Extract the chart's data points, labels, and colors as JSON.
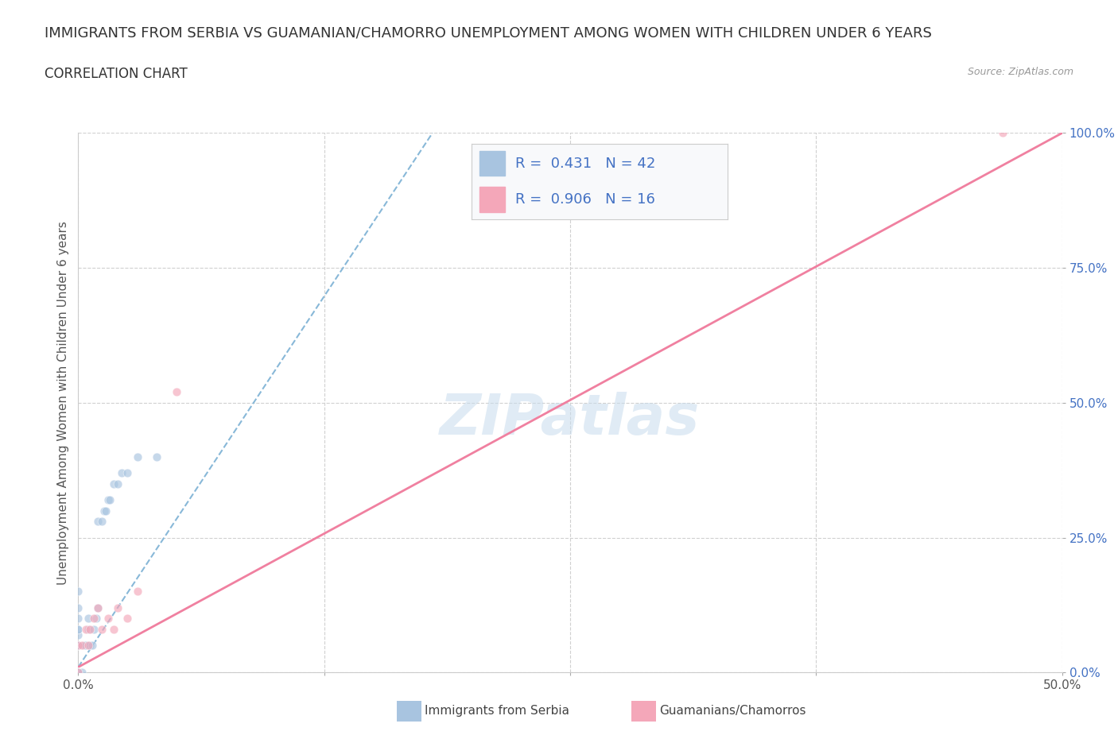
{
  "title": "IMMIGRANTS FROM SERBIA VS GUAMANIAN/CHAMORRO UNEMPLOYMENT AMONG WOMEN WITH CHILDREN UNDER 6 YEARS",
  "subtitle": "CORRELATION CHART",
  "source": "Source: ZipAtlas.com",
  "ylabel": "Unemployment Among Women with Children Under 6 years",
  "xlim": [
    0,
    0.5
  ],
  "ylim": [
    0,
    1.0
  ],
  "xticks": [
    0.0,
    0.125,
    0.25,
    0.375,
    0.5
  ],
  "yticks": [
    0.0,
    0.25,
    0.5,
    0.75,
    1.0
  ],
  "xtick_labels": [
    "0.0%",
    "",
    "",
    "",
    "50.0%"
  ],
  "ytick_labels": [
    "0.0%",
    "25.0%",
    "50.0%",
    "75.0%",
    "100.0%"
  ],
  "serbia_color": "#a8c4e0",
  "guam_color": "#f4a7b9",
  "serbia_trendline_color": "#88b8d8",
  "guam_trendline_color": "#f080a0",
  "legend_R_color": "#4472c4",
  "R_serbia": 0.431,
  "N_serbia": 42,
  "R_guam": 0.906,
  "N_guam": 16,
  "watermark": "ZIPatlas",
  "serbia_points_x": [
    0.0,
    0.0,
    0.0,
    0.0,
    0.0,
    0.0,
    0.0,
    0.0,
    0.0,
    0.0,
    0.0,
    0.0,
    0.0,
    0.0,
    0.0,
    0.0,
    0.0,
    0.0,
    0.0,
    0.0,
    0.002,
    0.003,
    0.004,
    0.005,
    0.005,
    0.006,
    0.007,
    0.008,
    0.009,
    0.01,
    0.01,
    0.012,
    0.013,
    0.014,
    0.015,
    0.016,
    0.018,
    0.02,
    0.022,
    0.025,
    0.03,
    0.04
  ],
  "serbia_points_y": [
    0.0,
    0.0,
    0.0,
    0.0,
    0.0,
    0.0,
    0.0,
    0.0,
    0.0,
    0.0,
    0.05,
    0.05,
    0.05,
    0.05,
    0.07,
    0.08,
    0.08,
    0.1,
    0.12,
    0.15,
    0.0,
    0.05,
    0.05,
    0.08,
    0.1,
    0.05,
    0.05,
    0.08,
    0.1,
    0.12,
    0.28,
    0.28,
    0.3,
    0.3,
    0.32,
    0.32,
    0.35,
    0.35,
    0.37,
    0.37,
    0.4,
    0.4
  ],
  "guam_points_x": [
    0.0,
    0.0,
    0.002,
    0.004,
    0.005,
    0.006,
    0.008,
    0.01,
    0.012,
    0.015,
    0.018,
    0.02,
    0.025,
    0.03,
    0.05,
    0.47
  ],
  "guam_points_y": [
    0.0,
    0.05,
    0.05,
    0.08,
    0.05,
    0.08,
    0.1,
    0.12,
    0.08,
    0.1,
    0.08,
    0.12,
    0.1,
    0.15,
    0.52,
    1.0
  ],
  "serbia_trend_x0": 0.0,
  "serbia_trend_x1": 0.18,
  "serbia_trend_y0": 0.01,
  "serbia_trend_y1": 1.0,
  "guam_trend_x0": 0.0,
  "guam_trend_x1": 0.5,
  "guam_trend_y0": 0.01,
  "guam_trend_y1": 1.0,
  "background_color": "#ffffff",
  "plot_bg_color": "#ffffff",
  "grid_color": "#d0d0d0",
  "title_fontsize": 13,
  "subtitle_fontsize": 12,
  "axis_label_fontsize": 11,
  "tick_fontsize": 11,
  "legend_fontsize": 13,
  "marker_size": 60,
  "marker_alpha": 0.65,
  "marker_edge_color": "#ffffff",
  "marker_edge_width": 0.5
}
